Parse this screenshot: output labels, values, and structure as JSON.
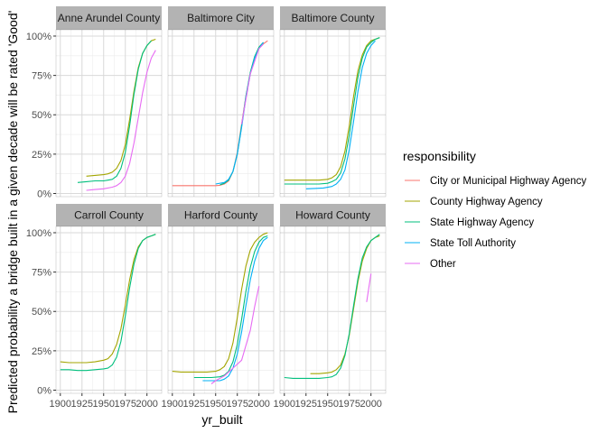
{
  "chart_data": {
    "type": "line",
    "xlabel": "yr_built",
    "ylabel": "Predicted probability a bridge built in a given decade will be rated 'Good'",
    "xlim": [
      1895,
      2017
    ],
    "ylim": [
      -0.02,
      1.04
    ],
    "x_ticks": [
      1900,
      1925,
      1950,
      1975,
      2000
    ],
    "x_tick_labels": [
      "1900",
      "1925",
      "1950",
      "1975",
      "2000"
    ],
    "y_ticks": [
      0,
      0.25,
      0.5,
      0.75,
      1
    ],
    "y_tick_labels": [
      "0%",
      "25%",
      "50%",
      "75%",
      "100%"
    ],
    "grid": true,
    "legend": {
      "title": "responsibility",
      "position": "right",
      "entries": [
        {
          "name": "City or Municipal Highway Agency",
          "color": "#F8766D"
        },
        {
          "name": "County Highway Agency",
          "color": "#A3A500"
        },
        {
          "name": "State Highway Agency",
          "color": "#00BF7D"
        },
        {
          "name": "State Toll Authority",
          "color": "#00B0F6"
        },
        {
          "name": "Other",
          "color": "#E76BF3"
        }
      ]
    },
    "panels": [
      {
        "title": "Anne Arundel County",
        "series": [
          {
            "name": "County Highway Agency",
            "x": [
              1930,
              1940,
              1950,
              1955,
              1960,
              1965,
              1970,
              1975,
              1980,
              1985,
              1990,
              1995,
              2000,
              2005,
              2010
            ],
            "y": [
              0.11,
              0.115,
              0.12,
              0.125,
              0.135,
              0.16,
              0.21,
              0.31,
              0.47,
              0.65,
              0.8,
              0.89,
              0.94,
              0.97,
              0.98
            ]
          },
          {
            "name": "State Highway Agency",
            "x": [
              1920,
              1930,
              1940,
              1950,
              1955,
              1960,
              1965,
              1970,
              1975,
              1980,
              1985,
              1990,
              1995,
              2000,
              2005
            ],
            "y": [
              0.07,
              0.075,
              0.08,
              0.08,
              0.085,
              0.09,
              0.11,
              0.16,
              0.26,
              0.43,
              0.63,
              0.79,
              0.89,
              0.94,
              0.97
            ]
          },
          {
            "name": "Other",
            "x": [
              1930,
              1940,
              1950,
              1960,
              1965,
              1970,
              1975,
              1980,
              1985,
              1990,
              1995,
              2000,
              2005,
              2010
            ],
            "y": [
              0.02,
              0.025,
              0.03,
              0.04,
              0.05,
              0.07,
              0.11,
              0.19,
              0.32,
              0.48,
              0.64,
              0.77,
              0.86,
              0.91
            ]
          }
        ]
      },
      {
        "title": "Baltimore City",
        "series": [
          {
            "name": "City or Municipal Highway Agency",
            "x": [
              1900,
              1910,
              1920,
              1930,
              1940,
              1950,
              1955,
              1960,
              1965,
              1970,
              1975,
              1980,
              1985,
              1990,
              1995,
              2000,
              2005,
              2010
            ],
            "y": [
              0.05,
              0.05,
              0.05,
              0.05,
              0.05,
              0.05,
              0.052,
              0.06,
              0.08,
              0.14,
              0.26,
              0.44,
              0.62,
              0.76,
              0.86,
              0.92,
              0.95,
              0.97
            ]
          },
          {
            "name": "State Highway Agency",
            "x": [
              1955,
              1960,
              1965,
              1970,
              1975,
              1980,
              1985,
              1990,
              1995,
              2000,
              2005
            ],
            "y": [
              0.055,
              0.065,
              0.085,
              0.14,
              0.25,
              0.43,
              0.62,
              0.77,
              0.87,
              0.93,
              0.96
            ]
          },
          {
            "name": "State Toll Authority",
            "x": [
              1950,
              1960,
              1965,
              1970,
              1975,
              1980,
              1985,
              1990,
              1995,
              2000,
              2005
            ],
            "y": [
              0.06,
              0.07,
              0.09,
              0.14,
              0.25,
              0.42,
              0.61,
              0.76,
              0.86,
              0.92,
              0.96
            ]
          },
          {
            "name": "Other",
            "x": [
              1980,
              1990,
              2000,
              2005
            ],
            "y": [
              0.44,
              0.76,
              0.92,
              0.95
            ]
          }
        ]
      },
      {
        "title": "Baltimore County",
        "series": [
          {
            "name": "County Highway Agency",
            "x": [
              1900,
              1910,
              1920,
              1930,
              1940,
              1950,
              1955,
              1960,
              1965,
              1970,
              1975,
              1980,
              1985,
              1990,
              1995,
              2000,
              2005,
              2010
            ],
            "y": [
              0.085,
              0.085,
              0.085,
              0.085,
              0.085,
              0.09,
              0.1,
              0.12,
              0.17,
              0.27,
              0.43,
              0.62,
              0.78,
              0.88,
              0.94,
              0.97,
              0.98,
              0.99
            ]
          },
          {
            "name": "State Highway Agency",
            "x": [
              1900,
              1910,
              1920,
              1930,
              1940,
              1950,
              1955,
              1960,
              1965,
              1970,
              1975,
              1980,
              1985,
              1990,
              1995,
              2000,
              2005,
              2010
            ],
            "y": [
              0.06,
              0.06,
              0.06,
              0.06,
              0.06,
              0.065,
              0.075,
              0.09,
              0.13,
              0.22,
              0.37,
              0.56,
              0.74,
              0.86,
              0.93,
              0.96,
              0.98,
              0.99
            ]
          },
          {
            "name": "State Toll Authority",
            "x": [
              1925,
              1935,
              1945,
              1955,
              1960,
              1965,
              1970,
              1975,
              1980,
              1985,
              1990,
              1995,
              2000,
              2005
            ],
            "y": [
              0.03,
              0.032,
              0.035,
              0.045,
              0.06,
              0.09,
              0.15,
              0.28,
              0.46,
              0.65,
              0.8,
              0.89,
              0.94,
              0.97
            ]
          }
        ]
      },
      {
        "title": "Carroll County",
        "series": [
          {
            "name": "County Highway Agency",
            "x": [
              1900,
              1910,
              1920,
              1930,
              1940,
              1950,
              1955,
              1960,
              1965,
              1970,
              1975,
              1980,
              1985,
              1990,
              1995,
              2000,
              2005,
              2010
            ],
            "y": [
              0.18,
              0.175,
              0.175,
              0.175,
              0.18,
              0.19,
              0.2,
              0.23,
              0.29,
              0.39,
              0.54,
              0.7,
              0.83,
              0.91,
              0.95,
              0.97,
              0.98,
              0.99
            ]
          },
          {
            "name": "State Highway Agency",
            "x": [
              1900,
              1910,
              1920,
              1930,
              1940,
              1950,
              1955,
              1960,
              1965,
              1970,
              1975,
              1980,
              1985,
              1990,
              1995,
              2000,
              2005,
              2010
            ],
            "y": [
              0.13,
              0.13,
              0.125,
              0.125,
              0.13,
              0.135,
              0.14,
              0.16,
              0.21,
              0.31,
              0.47,
              0.65,
              0.8,
              0.9,
              0.95,
              0.97,
              0.98,
              0.99
            ]
          }
        ]
      },
      {
        "title": "Harford County",
        "series": [
          {
            "name": "County Highway Agency",
            "x": [
              1900,
              1910,
              1920,
              1930,
              1940,
              1950,
              1955,
              1960,
              1965,
              1970,
              1975,
              1980,
              1985,
              1990,
              1995,
              2000,
              2005,
              2010
            ],
            "y": [
              0.12,
              0.115,
              0.115,
              0.115,
              0.115,
              0.12,
              0.13,
              0.15,
              0.2,
              0.3,
              0.46,
              0.64,
              0.79,
              0.89,
              0.94,
              0.97,
              0.99,
              1.0
            ]
          },
          {
            "name": "State Highway Agency",
            "x": [
              1925,
              1935,
              1945,
              1955,
              1960,
              1965,
              1970,
              1975,
              1980,
              1985,
              1990,
              1995,
              2000,
              2005,
              2010
            ],
            "y": [
              0.08,
              0.08,
              0.08,
              0.085,
              0.095,
              0.12,
              0.18,
              0.29,
              0.45,
              0.63,
              0.78,
              0.88,
              0.94,
              0.97,
              0.98
            ]
          },
          {
            "name": "State Toll Authority",
            "x": [
              1935,
              1945,
              1955,
              1960,
              1965,
              1970,
              1975,
              1980,
              1985,
              1990,
              1995,
              2000,
              2005,
              2010
            ],
            "y": [
              0.06,
              0.06,
              0.06,
              0.07,
              0.09,
              0.14,
              0.23,
              0.37,
              0.54,
              0.7,
              0.82,
              0.9,
              0.95,
              0.97
            ]
          },
          {
            "name": "Other",
            "x": [
              1945,
              1950,
              1960,
              1970,
              1980,
              1990,
              1995,
              2000
            ],
            "y": [
              0.04,
              0.06,
              0.09,
              0.14,
              0.19,
              0.38,
              0.53,
              0.66
            ]
          }
        ]
      },
      {
        "title": "Howard County",
        "series": [
          {
            "name": "County Highway Agency",
            "x": [
              1930,
              1940,
              1950,
              1955,
              1960,
              1965,
              1970,
              1975,
              1980,
              1985,
              1990,
              1995,
              2000,
              2005,
              2010
            ],
            "y": [
              0.105,
              0.105,
              0.11,
              0.115,
              0.13,
              0.16,
              0.23,
              0.35,
              0.52,
              0.69,
              0.82,
              0.9,
              0.95,
              0.97,
              0.98
            ]
          },
          {
            "name": "State Highway Agency",
            "x": [
              1900,
              1910,
              1920,
              1930,
              1940,
              1950,
              1955,
              1960,
              1965,
              1970,
              1975,
              1980,
              1985,
              1990,
              1995,
              2000,
              2005,
              2010
            ],
            "y": [
              0.08,
              0.075,
              0.075,
              0.075,
              0.075,
              0.08,
              0.085,
              0.1,
              0.14,
              0.22,
              0.36,
              0.54,
              0.71,
              0.84,
              0.91,
              0.95,
              0.97,
              0.99
            ]
          },
          {
            "name": "Other",
            "x": [
              1995,
              2000
            ],
            "y": [
              0.56,
              0.74
            ]
          }
        ]
      }
    ]
  }
}
